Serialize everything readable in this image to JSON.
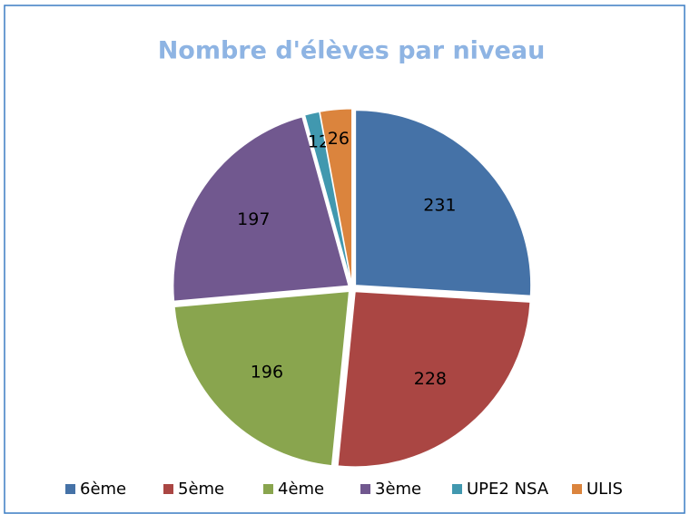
{
  "chart_data": {
    "type": "pie",
    "title": "Nombre d'élèves par niveau",
    "categories": [
      "6ème",
      "5ème",
      "4ème",
      "3ème",
      "UPE2 NSA",
      "ULIS"
    ],
    "values": [
      231,
      228,
      196,
      197,
      12,
      26
    ],
    "colors": [
      "#4572a7",
      "#aa4643",
      "#89a54e",
      "#71588f",
      "#4198af",
      "#db843d"
    ],
    "legend": "bottom"
  }
}
